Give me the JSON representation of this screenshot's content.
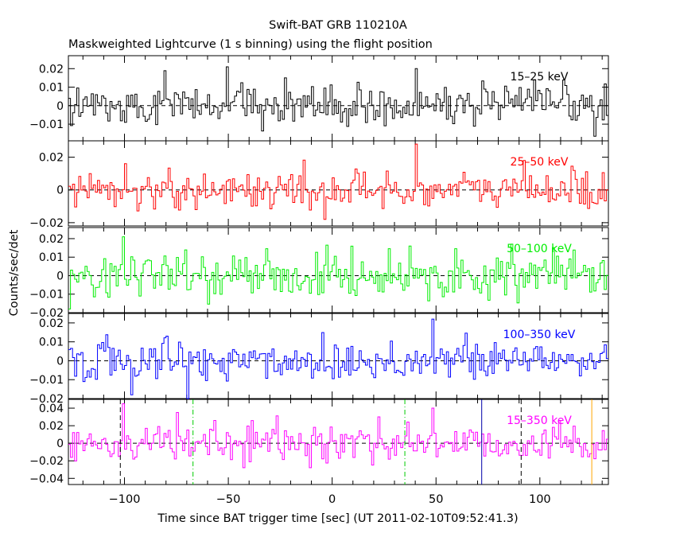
{
  "figure": {
    "title": "Swift-BAT GRB 110210A",
    "subtitle": "Maskweighted Lightcurve (1 s binning) using the flight position",
    "xlabel": "Time since BAT trigger time [sec] (UT 2011-02-10T09:52:41.3)",
    "ylabel": "Counts/sec/det"
  },
  "chart_data": {
    "type": "line",
    "style": "step",
    "title": "Swift-BAT GRB 110210A",
    "subtitle": "Maskweighted Lightcurve (1 s binning) using the flight position",
    "xlabel": "Time since BAT trigger time [sec] (UT 2011-02-10T09:52:41.3)",
    "ylabel": "Counts/sec/det",
    "xlim": [
      -127,
      133
    ],
    "xticks": [
      -100,
      -50,
      0,
      50,
      100
    ],
    "xtick_labels": [
      "−100",
      "−50",
      "0",
      "50",
      "100"
    ],
    "bin_seconds": 1,
    "panels": [
      {
        "name": "15–25 keV",
        "color": "#000000",
        "ylim": [
          -0.019,
          0.027
        ],
        "yticks": [
          0.02,
          0.01,
          0,
          -0.01
        ],
        "ytick_labels": [
          "0.02",
          "0.01",
          "0",
          "−0.01"
        ],
        "noise_sigma": 0.0055,
        "peaks": [
          [
            -51,
            0.021
          ],
          [
            40,
            0.02
          ],
          [
            -23,
            0.015
          ],
          [
            97,
            0.014
          ]
        ]
      },
      {
        "name": "25–50 keV",
        "color": "#ff0000",
        "ylim": [
          -0.022,
          0.03
        ],
        "yticks": [
          0.02,
          0,
          -0.02
        ],
        "ytick_labels": [
          "0.02",
          "0",
          "−0.02"
        ],
        "noise_sigma": 0.0058,
        "peaks": [
          [
            40,
            0.028
          ],
          [
            -4,
            -0.018
          ],
          [
            92,
            0.018
          ],
          [
            -100,
            0.016
          ]
        ]
      },
      {
        "name": "50–100 keV",
        "color": "#00ee00",
        "ylim": [
          -0.02,
          0.026
        ],
        "yticks": [
          0.02,
          0.01,
          0,
          -0.01,
          -0.02
        ],
        "ytick_labels": [
          "0.02",
          "0.01",
          "0",
          "−0.01",
          "−0.02"
        ],
        "noise_sigma": 0.0058,
        "peaks": [
          [
            -101,
            0.021
          ],
          [
            -127,
            -0.018
          ],
          [
            86,
            0.017
          ],
          [
            37,
            0.016
          ]
        ]
      },
      {
        "name": "100–350 keV",
        "color": "#0000ff",
        "ylim": [
          -0.02,
          0.025
        ],
        "yticks": [
          0.02,
          0.01,
          0,
          -0.01,
          -0.02
        ],
        "ytick_labels": [
          "0.02",
          "0.01",
          "0",
          "−0.01",
          "−0.02"
        ],
        "noise_sigma": 0.0058,
        "peaks": [
          [
            48,
            0.022
          ],
          [
            -80,
            0.013
          ],
          [
            -70,
            -0.02
          ],
          [
            -97,
            -0.018
          ]
        ]
      },
      {
        "name": "15–350 keV",
        "color": "#ff00ff",
        "ylim": [
          -0.047,
          0.05
        ],
        "yticks": [
          0.04,
          0.02,
          0,
          -0.02,
          -0.04
        ],
        "ytick_labels": [
          "0.04",
          "0.02",
          "0",
          "−0.02",
          "−0.04"
        ],
        "noise_sigma": 0.0105,
        "peaks": [
          [
            -101,
            0.045
          ],
          [
            48,
            0.04
          ],
          [
            -75,
            0.035
          ],
          [
            22,
            0.03
          ]
        ],
        "markers": [
          {
            "x": -102,
            "color": "#000000",
            "style": "dashed"
          },
          {
            "x": -67,
            "color": "#00cc00",
            "style": "dashdot"
          },
          {
            "x": 35,
            "color": "#00cc00",
            "style": "dashdot"
          },
          {
            "x": 72,
            "color": "#0000aa",
            "style": "solid"
          },
          {
            "x": 91,
            "color": "#000000",
            "style": "dashed"
          },
          {
            "x": 125,
            "color": "#ffa500",
            "style": "solid"
          }
        ]
      }
    ]
  }
}
